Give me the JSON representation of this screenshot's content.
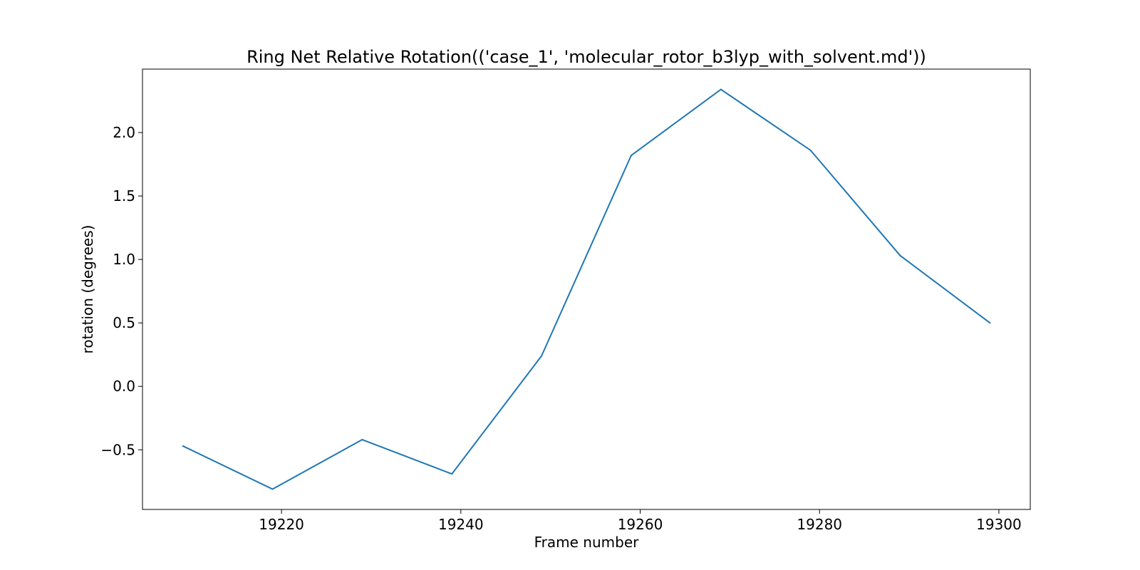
{
  "chart_data": {
    "type": "line",
    "title": "Ring Net Relative Rotation(('case_1', 'molecular_rotor_b3lyp_with_solvent.md'))",
    "xlabel": "Frame number",
    "ylabel": "rotation (degrees)",
    "xlim": [
      19204.5,
      19303.5
    ],
    "ylim": [
      -0.97,
      2.5
    ],
    "xticks": [
      19220,
      19240,
      19260,
      19280,
      19300
    ],
    "yticks": [
      -0.5,
      0.0,
      0.5,
      1.0,
      1.5,
      2.0
    ],
    "xtick_labels": [
      "19220",
      "19240",
      "19260",
      "19280",
      "19300"
    ],
    "ytick_labels": [
      "−0.5",
      "0.0",
      "0.5",
      "1.0",
      "1.5",
      "2.0"
    ],
    "grid": false,
    "series": [
      {
        "color": "#1f77b4",
        "x": [
          19209,
          19219,
          19229,
          19239,
          19249,
          19259,
          19269,
          19279,
          19289,
          19299
        ],
        "y": [
          -0.47,
          -0.81,
          -0.42,
          -0.69,
          0.24,
          1.82,
          2.34,
          1.86,
          1.03,
          0.5
        ]
      }
    ]
  }
}
